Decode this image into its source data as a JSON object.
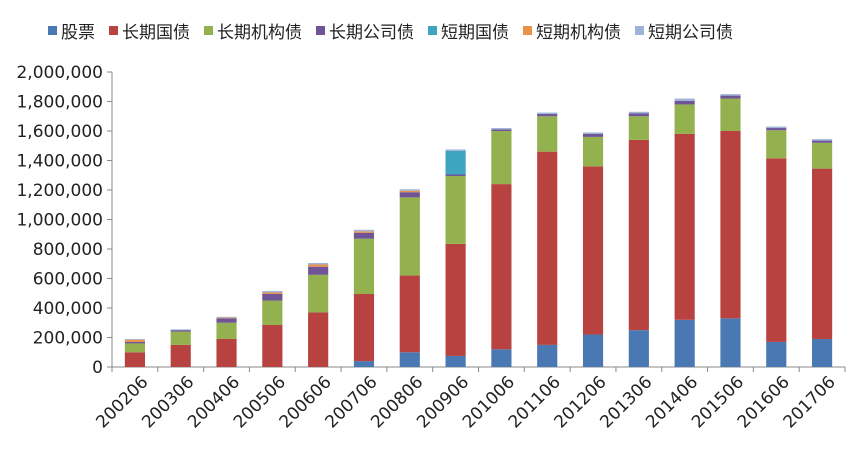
{
  "chart_data": {
    "type": "bar",
    "stacked": true,
    "categories": [
      "200206",
      "200306",
      "200406",
      "200506",
      "200606",
      "200706",
      "200806",
      "200906",
      "201006",
      "201106",
      "201206",
      "201306",
      "201406",
      "201506",
      "201606",
      "201706"
    ],
    "ylim": [
      0,
      2000000
    ],
    "yticks": [
      "0",
      "200,000",
      "400,000",
      "600,000",
      "800,000",
      "1,000,000",
      "1,200,000",
      "1,400,000",
      "1,600,000",
      "1,800,000",
      "2,000,000"
    ],
    "legend_position": "top",
    "grid": false,
    "series": [
      {
        "name": "股票",
        "color": "#4a78b2",
        "values": [
          0,
          0,
          0,
          0,
          0,
          40000,
          100000,
          75000,
          120000,
          150000,
          220000,
          250000,
          320000,
          330000,
          170000,
          190000
        ]
      },
      {
        "name": "长期国债",
        "color": "#b8423f",
        "values": [
          100000,
          150000,
          190000,
          285000,
          370000,
          455000,
          520000,
          760000,
          1120000,
          1310000,
          1140000,
          1290000,
          1260000,
          1270000,
          1245000,
          1155000
        ]
      },
      {
        "name": "长期机构债",
        "color": "#93b14e",
        "values": [
          60000,
          90000,
          110000,
          165000,
          255000,
          375000,
          530000,
          460000,
          360000,
          240000,
          200000,
          160000,
          200000,
          220000,
          190000,
          175000
        ]
      },
      {
        "name": "长期公司债",
        "color": "#6f5596",
        "values": [
          10000,
          10000,
          30000,
          45000,
          55000,
          40000,
          35000,
          10000,
          10000,
          15000,
          20000,
          20000,
          25000,
          20000,
          15000,
          15000
        ]
      },
      {
        "name": "短期国债",
        "color": "#3fa4bf",
        "values": [
          0,
          0,
          0,
          0,
          0,
          0,
          0,
          160000,
          0,
          0,
          0,
          0,
          0,
          0,
          0,
          0
        ]
      },
      {
        "name": "短期机构债",
        "color": "#e8924a",
        "values": [
          15000,
          0,
          5000,
          10000,
          15000,
          10000,
          10000,
          0,
          0,
          0,
          0,
          0,
          0,
          0,
          0,
          0
        ]
      },
      {
        "name": "短期公司债",
        "color": "#9db3d8",
        "values": [
          5000,
          5000,
          5000,
          10000,
          10000,
          10000,
          10000,
          10000,
          10000,
          10000,
          10000,
          10000,
          15000,
          10000,
          10000,
          10000
        ]
      }
    ]
  }
}
